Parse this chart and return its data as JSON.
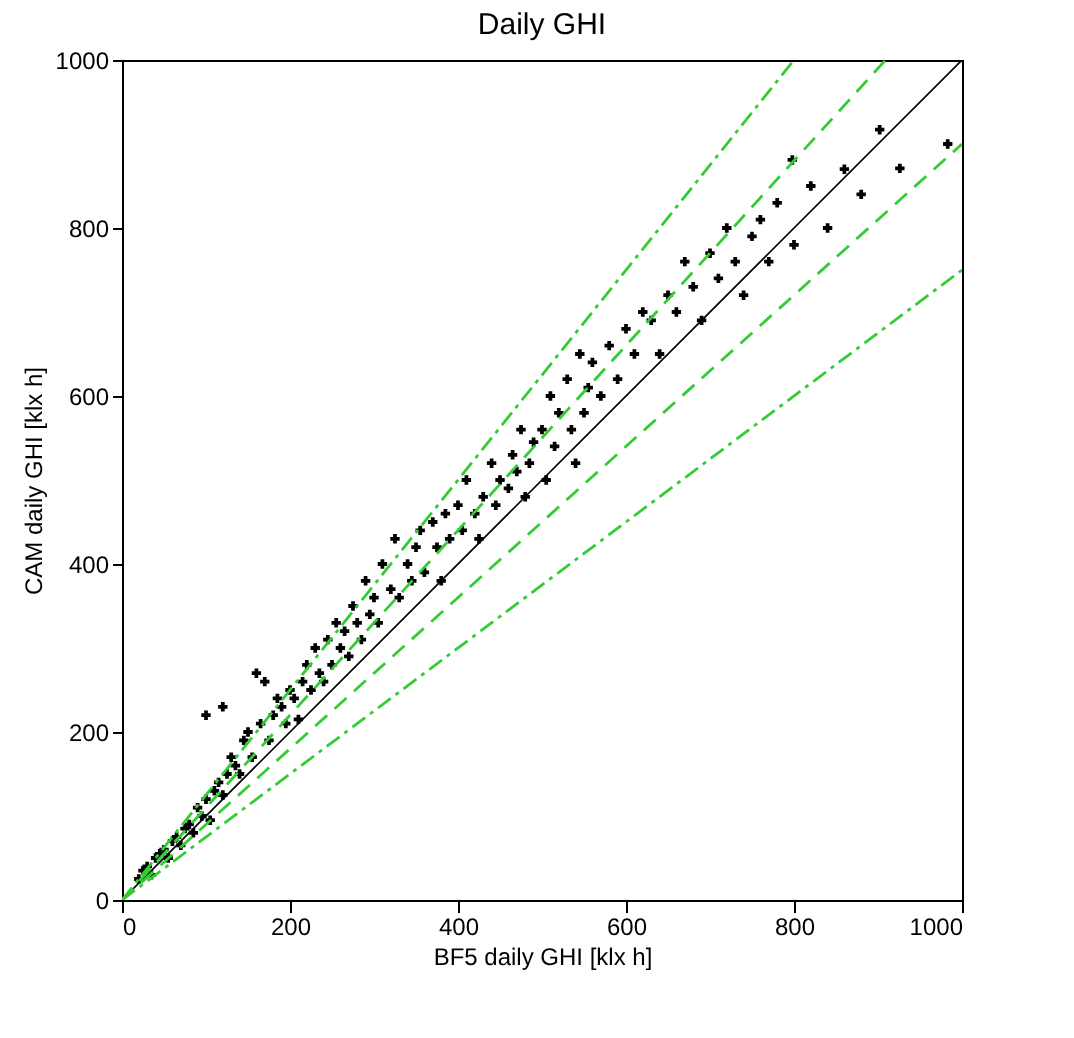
{
  "chart_data": {
    "type": "scatter",
    "title": "Daily GHI",
    "xlabel": "BF5 daily GHI [klx h]",
    "ylabel": "CAM daily GHI [klx h]",
    "xlim": [
      0,
      1000
    ],
    "ylim": [
      0,
      1000
    ],
    "xticks": [
      0,
      200,
      400,
      600,
      800,
      1000
    ],
    "yticks": [
      0,
      200,
      400,
      600,
      800,
      1000
    ],
    "grid": false,
    "series": [
      {
        "color": "#000000",
        "marker": "cross",
        "x": [
          20,
          25,
          30,
          35,
          40,
          45,
          50,
          55,
          60,
          65,
          70,
          75,
          80,
          85,
          90,
          95,
          100,
          100,
          105,
          110,
          115,
          120,
          120,
          125,
          130,
          135,
          140,
          145,
          150,
          155,
          160,
          165,
          170,
          175,
          180,
          185,
          190,
          195,
          200,
          205,
          210,
          215,
          220,
          225,
          230,
          235,
          240,
          245,
          250,
          255,
          260,
          265,
          270,
          275,
          280,
          285,
          290,
          295,
          300,
          305,
          310,
          320,
          325,
          330,
          340,
          345,
          350,
          355,
          360,
          370,
          375,
          380,
          385,
          390,
          400,
          405,
          410,
          420,
          425,
          430,
          440,
          445,
          450,
          460,
          465,
          470,
          475,
          480,
          485,
          490,
          500,
          505,
          510,
          515,
          520,
          530,
          535,
          540,
          545,
          550,
          555,
          560,
          570,
          580,
          590,
          600,
          610,
          620,
          630,
          640,
          650,
          660,
          670,
          680,
          690,
          700,
          710,
          720,
          730,
          740,
          750,
          760,
          770,
          780,
          798,
          800,
          820,
          840,
          860,
          880,
          902,
          926,
          983
        ],
        "values": [
          25,
          35,
          40,
          30,
          50,
          55,
          60,
          50,
          70,
          75,
          65,
          85,
          90,
          80,
          110,
          100,
          120,
          220,
          95,
          130,
          140,
          125,
          230,
          150,
          170,
          160,
          150,
          190,
          200,
          170,
          270,
          210,
          260,
          190,
          220,
          240,
          230,
          210,
          250,
          240,
          215,
          260,
          280,
          250,
          300,
          270,
          260,
          310,
          280,
          330,
          300,
          320,
          290,
          350,
          330,
          310,
          380,
          340,
          360,
          330,
          400,
          370,
          430,
          360,
          400,
          380,
          420,
          440,
          390,
          450,
          420,
          380,
          460,
          430,
          470,
          440,
          500,
          460,
          430,
          480,
          520,
          470,
          500,
          490,
          530,
          510,
          560,
          480,
          520,
          545,
          560,
          500,
          600,
          540,
          580,
          620,
          560,
          520,
          650,
          580,
          610,
          640,
          600,
          660,
          620,
          680,
          650,
          700,
          690,
          650,
          720,
          700,
          760,
          730,
          690,
          770,
          740,
          800,
          760,
          720,
          790,
          810,
          760,
          830,
          881,
          780,
          850,
          800,
          870,
          840,
          917,
          871,
          900
        ]
      },
      {
        "type": "line",
        "color": "#000000",
        "line_style": "solid",
        "x": [
          0,
          1000
        ],
        "values": [
          0,
          1000
        ]
      },
      {
        "type": "line",
        "color": "#33cc33",
        "line_style": "dashed",
        "x": [
          0,
          909
        ],
        "values": [
          0,
          1000
        ]
      },
      {
        "type": "line",
        "color": "#33cc33",
        "line_style": "dashed",
        "x": [
          0,
          1000
        ],
        "values": [
          0,
          900
        ]
      },
      {
        "type": "line",
        "color": "#33cc33",
        "line_style": "dashdot",
        "x": [
          0,
          800
        ],
        "values": [
          0,
          1000
        ]
      },
      {
        "type": "line",
        "color": "#33cc33",
        "line_style": "dashdot",
        "x": [
          0,
          1000
        ],
        "values": [
          0,
          750
        ]
      }
    ]
  }
}
